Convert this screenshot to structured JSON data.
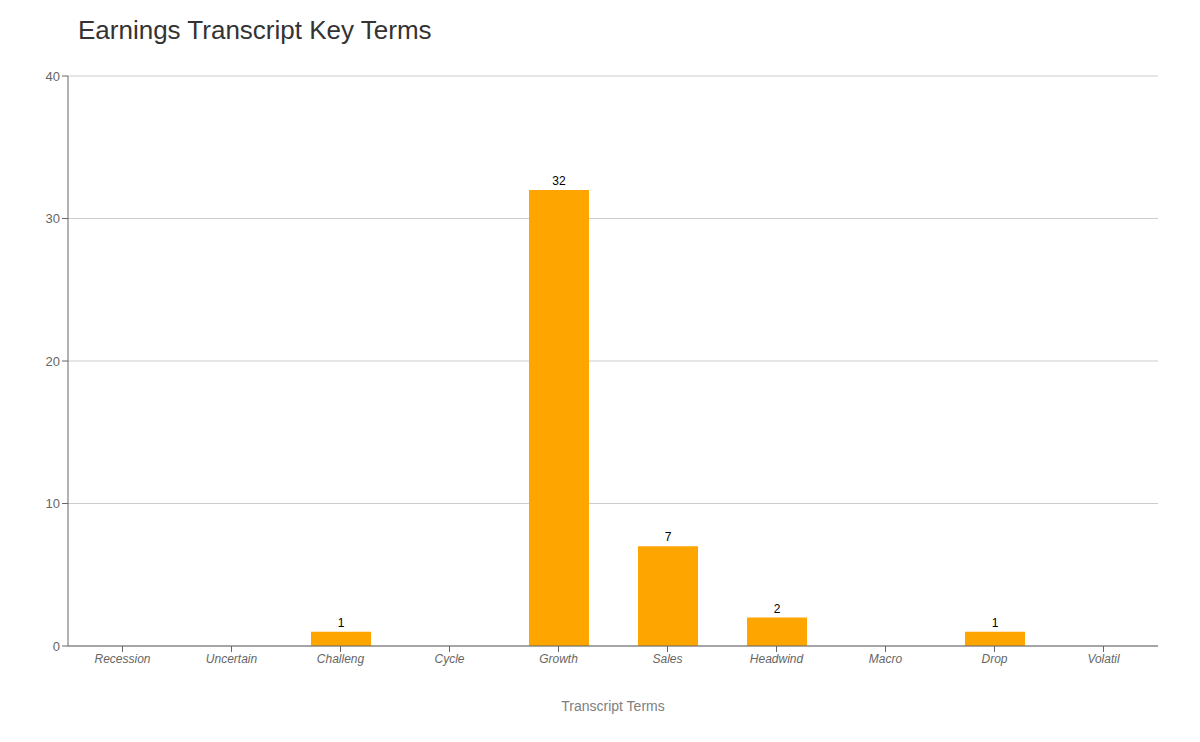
{
  "chart_data": {
    "type": "bar",
    "title": "Earnings Transcript Key Terms",
    "xlabel": "Transcript Terms",
    "categories": [
      "Recession",
      "Uncertain",
      "Challeng",
      "Cycle",
      "Growth",
      "Sales",
      "Headwind",
      "Macro",
      "Drop",
      "Volatil"
    ],
    "values": [
      0,
      0,
      1,
      0,
      32,
      7,
      2,
      0,
      1,
      0
    ],
    "color": "#FFA500",
    "ylim": [
      0,
      40
    ],
    "yticks": [
      0,
      10,
      20,
      30,
      40
    ],
    "grid": true,
    "data_labels": true
  }
}
